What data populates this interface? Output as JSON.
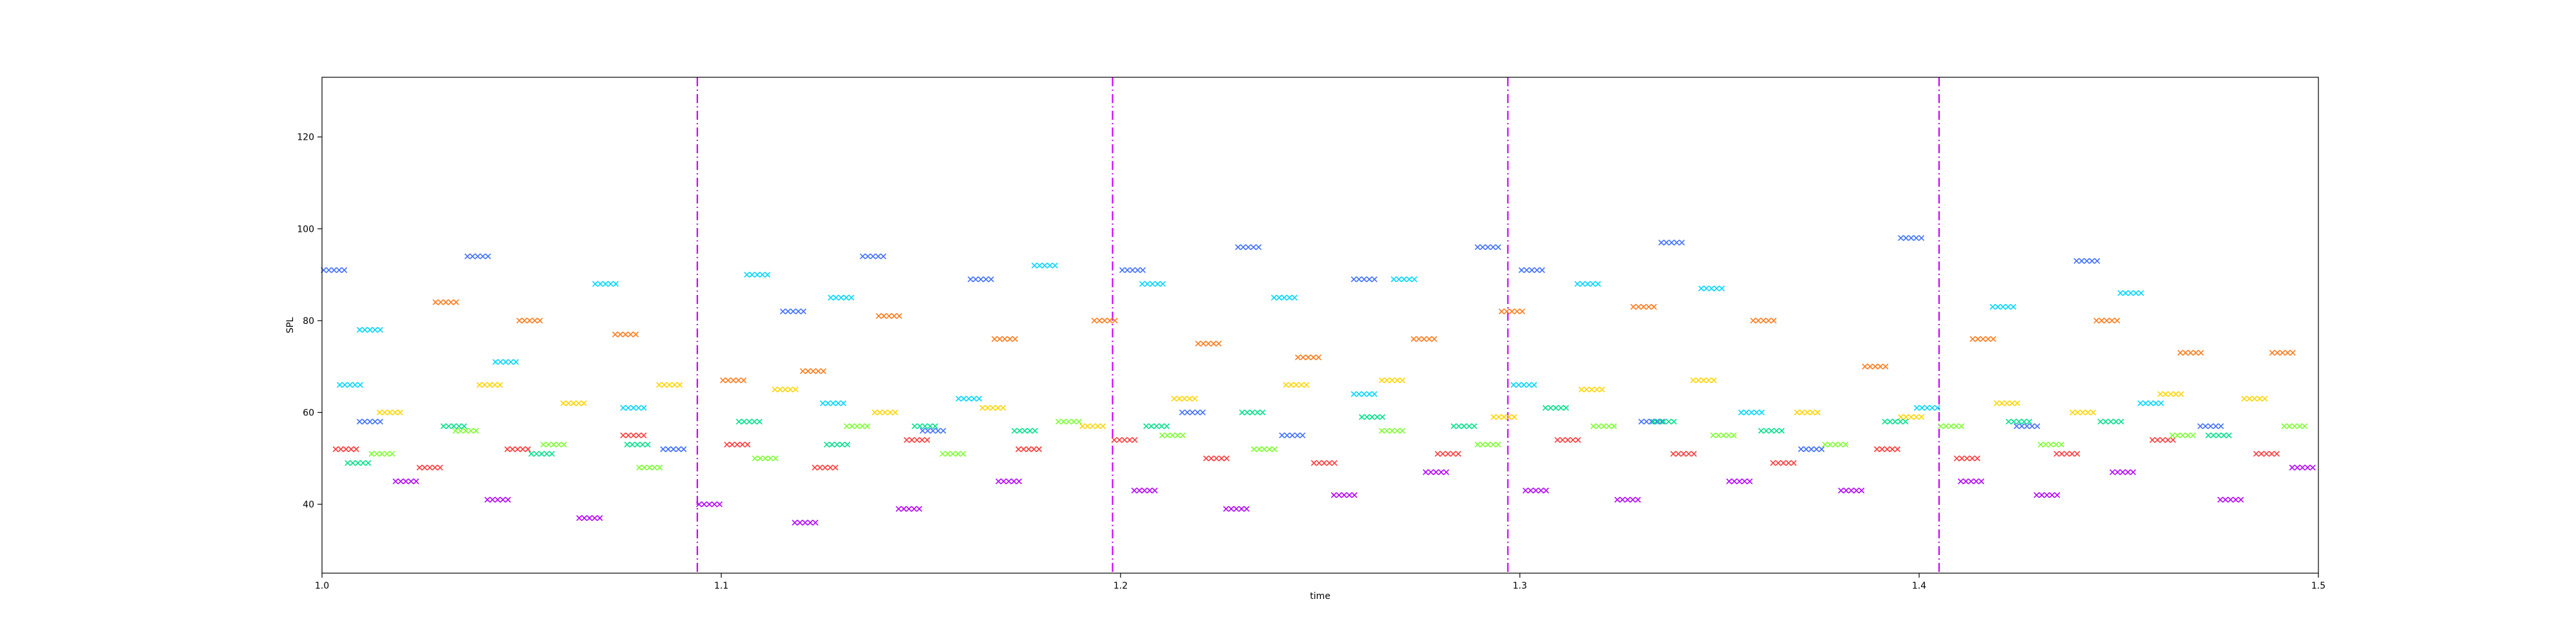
{
  "chart_data": {
    "type": "scatter",
    "title": "",
    "xlabel": "time",
    "ylabel": "SPL",
    "xlim": [
      1.0,
      1.5
    ],
    "ylim": [
      25,
      133
    ],
    "xticks": [
      1.0,
      1.1,
      1.2,
      1.3,
      1.4,
      1.5
    ],
    "xtick_labels": [
      "1.0",
      "1.1",
      "1.2",
      "1.3",
      "1.4",
      "1.5"
    ],
    "yticks": [
      40,
      60,
      80,
      100,
      120
    ],
    "ytick_labels": [
      "40",
      "60",
      "80",
      "100",
      "120"
    ],
    "marker": "x",
    "grid": false,
    "vlines": {
      "x": [
        1.094,
        1.198,
        1.297,
        1.405
      ],
      "color": "#cc00ff",
      "style": "dash-dot"
    },
    "series": [
      {
        "values": [
          [
            1.003,
            91
          ],
          [
            1.039,
            94
          ],
          [
            1.118,
            82
          ],
          [
            1.138,
            94
          ],
          [
            1.165,
            89
          ],
          [
            1.203,
            91
          ],
          [
            1.218,
            60
          ],
          [
            1.232,
            96
          ],
          [
            1.261,
            89
          ],
          [
            1.292,
            96
          ],
          [
            1.303,
            91
          ],
          [
            1.338,
            97
          ],
          [
            1.398,
            98
          ],
          [
            1.442,
            93
          ],
          [
            1.012,
            58
          ],
          [
            1.088,
            52
          ],
          [
            1.153,
            56
          ],
          [
            1.243,
            55
          ],
          [
            1.333,
            58
          ],
          [
            1.373,
            52
          ],
          [
            1.427,
            57
          ],
          [
            1.473,
            57
          ]
        ],
        "color": "#3f6fff"
      },
      {
        "values": [
          [
            1.012,
            78
          ],
          [
            1.046,
            71
          ],
          [
            1.071,
            88
          ],
          [
            1.109,
            90
          ],
          [
            1.13,
            85
          ],
          [
            1.181,
            92
          ],
          [
            1.208,
            88
          ],
          [
            1.241,
            85
          ],
          [
            1.271,
            89
          ],
          [
            1.317,
            88
          ],
          [
            1.348,
            87
          ],
          [
            1.421,
            83
          ],
          [
            1.453,
            86
          ],
          [
            1.007,
            66
          ],
          [
            1.078,
            61
          ],
          [
            1.128,
            62
          ],
          [
            1.162,
            63
          ],
          [
            1.261,
            64
          ],
          [
            1.301,
            66
          ],
          [
            1.358,
            60
          ],
          [
            1.402,
            61
          ],
          [
            1.458,
            62
          ]
        ],
        "color": "#00d5ff"
      },
      {
        "values": [
          [
            1.006,
            52
          ],
          [
            1.027,
            48
          ],
          [
            1.049,
            52
          ],
          [
            1.078,
            55
          ],
          [
            1.104,
            53
          ],
          [
            1.126,
            48
          ],
          [
            1.149,
            54
          ],
          [
            1.177,
            52
          ],
          [
            1.201,
            54
          ],
          [
            1.224,
            50
          ],
          [
            1.251,
            49
          ],
          [
            1.282,
            51
          ],
          [
            1.312,
            54
          ],
          [
            1.341,
            51
          ],
          [
            1.366,
            49
          ],
          [
            1.392,
            52
          ],
          [
            1.412,
            50
          ],
          [
            1.437,
            51
          ],
          [
            1.461,
            54
          ],
          [
            1.487,
            51
          ]
        ],
        "color": "#ff3a3a"
      },
      {
        "values": [
          [
            1.015,
            51
          ],
          [
            1.036,
            56
          ],
          [
            1.058,
            53
          ],
          [
            1.082,
            48
          ],
          [
            1.111,
            50
          ],
          [
            1.134,
            57
          ],
          [
            1.158,
            51
          ],
          [
            1.187,
            58
          ],
          [
            1.213,
            55
          ],
          [
            1.236,
            52
          ],
          [
            1.268,
            56
          ],
          [
            1.292,
            53
          ],
          [
            1.321,
            57
          ],
          [
            1.351,
            55
          ],
          [
            1.379,
            53
          ],
          [
            1.408,
            57
          ],
          [
            1.433,
            53
          ],
          [
            1.466,
            55
          ],
          [
            1.494,
            57
          ]
        ],
        "color": "#7bff30"
      },
      {
        "values": [
          [
            1.021,
            45
          ],
          [
            1.044,
            41
          ],
          [
            1.067,
            37
          ],
          [
            1.097,
            40
          ],
          [
            1.121,
            36
          ],
          [
            1.147,
            39
          ],
          [
            1.172,
            45
          ],
          [
            1.206,
            43
          ],
          [
            1.229,
            39
          ],
          [
            1.256,
            42
          ],
          [
            1.279,
            47
          ],
          [
            1.304,
            43
          ],
          [
            1.327,
            41
          ],
          [
            1.355,
            45
          ],
          [
            1.383,
            43
          ],
          [
            1.413,
            45
          ],
          [
            1.432,
            42
          ],
          [
            1.451,
            47
          ],
          [
            1.478,
            41
          ],
          [
            1.496,
            48
          ]
        ],
        "color": "#b300ff"
      },
      {
        "values": [
          [
            1.031,
            84
          ],
          [
            1.052,
            80
          ],
          [
            1.076,
            77
          ],
          [
            1.103,
            67
          ],
          [
            1.123,
            69
          ],
          [
            1.142,
            81
          ],
          [
            1.171,
            76
          ],
          [
            1.196,
            80
          ],
          [
            1.222,
            75
          ],
          [
            1.247,
            72
          ],
          [
            1.276,
            76
          ],
          [
            1.298,
            82
          ],
          [
            1.331,
            83
          ],
          [
            1.361,
            80
          ],
          [
            1.389,
            70
          ],
          [
            1.416,
            76
          ],
          [
            1.447,
            80
          ],
          [
            1.468,
            73
          ],
          [
            1.491,
            73
          ]
        ],
        "color": "#ff7a1a"
      },
      {
        "values": [
          [
            1.017,
            60
          ],
          [
            1.042,
            66
          ],
          [
            1.063,
            62
          ],
          [
            1.087,
            66
          ],
          [
            1.116,
            65
          ],
          [
            1.141,
            60
          ],
          [
            1.168,
            61
          ],
          [
            1.193,
            57
          ],
          [
            1.216,
            63
          ],
          [
            1.244,
            66
          ],
          [
            1.268,
            67
          ],
          [
            1.296,
            59
          ],
          [
            1.318,
            65
          ],
          [
            1.346,
            67
          ],
          [
            1.372,
            60
          ],
          [
            1.398,
            59
          ],
          [
            1.422,
            62
          ],
          [
            1.441,
            60
          ],
          [
            1.463,
            64
          ],
          [
            1.484,
            63
          ]
        ],
        "color": "#ffd400"
      },
      {
        "values": [
          [
            1.009,
            49
          ],
          [
            1.033,
            57
          ],
          [
            1.055,
            51
          ],
          [
            1.079,
            53
          ],
          [
            1.107,
            58
          ],
          [
            1.129,
            53
          ],
          [
            1.151,
            57
          ],
          [
            1.176,
            56
          ],
          [
            1.209,
            57
          ],
          [
            1.233,
            60
          ],
          [
            1.263,
            59
          ],
          [
            1.286,
            57
          ],
          [
            1.309,
            61
          ],
          [
            1.336,
            58
          ],
          [
            1.363,
            56
          ],
          [
            1.394,
            58
          ],
          [
            1.425,
            58
          ],
          [
            1.448,
            58
          ],
          [
            1.475,
            55
          ]
        ],
        "color": "#00e08a"
      }
    ]
  }
}
